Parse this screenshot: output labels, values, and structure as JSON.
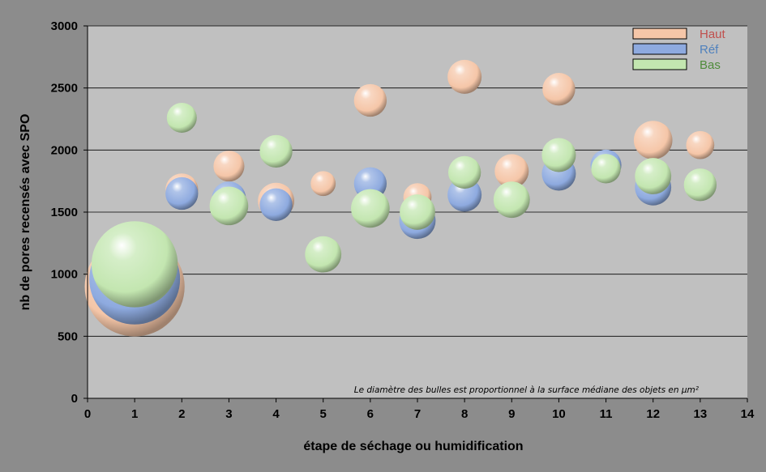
{
  "chart_data": {
    "type": "bubble",
    "xlabel": "étape de séchage ou humidification",
    "ylabel": "nb de pores recensés avec SPO",
    "xlim": [
      0,
      14
    ],
    "ylim": [
      0,
      3000
    ],
    "x_ticks": [
      0,
      1,
      2,
      3,
      4,
      5,
      6,
      7,
      8,
      9,
      10,
      11,
      12,
      13,
      14
    ],
    "y_ticks": [
      0,
      500,
      1000,
      1500,
      2000,
      2500,
      3000
    ],
    "grid": "horizontal",
    "legend_position": "top-right",
    "annotation": "Le diamètre des bulles est proportionnel à la surface médiane des objets en µm²",
    "series": [
      {
        "name": "Haut",
        "color": "#f5c6a8",
        "label_color": "#c0504d",
        "points": [
          {
            "x": 1,
            "y": 900,
            "size": 2.2
          },
          {
            "x": 2,
            "y": 1680,
            "size": 0.72
          },
          {
            "x": 3,
            "y": 1870,
            "size": 0.68
          },
          {
            "x": 4,
            "y": 1590,
            "size": 0.8
          },
          {
            "x": 5,
            "y": 1730,
            "size": 0.55
          },
          {
            "x": 6,
            "y": 2400,
            "size": 0.72
          },
          {
            "x": 7,
            "y": 1620,
            "size": 0.62
          },
          {
            "x": 8,
            "y": 2590,
            "size": 0.75
          },
          {
            "x": 9,
            "y": 1830,
            "size": 0.75
          },
          {
            "x": 10,
            "y": 2490,
            "size": 0.72
          },
          {
            "x": 12,
            "y": 2080,
            "size": 0.85
          },
          {
            "x": 13,
            "y": 2040,
            "size": 0.62
          }
        ]
      },
      {
        "name": "Réf",
        "color": "#8eaadf",
        "label_color": "#4f81bd",
        "points": [
          {
            "x": 1,
            "y": 960,
            "size": 2.0
          },
          {
            "x": 2,
            "y": 1650,
            "size": 0.72
          },
          {
            "x": 3,
            "y": 1610,
            "size": 0.75
          },
          {
            "x": 4,
            "y": 1560,
            "size": 0.72
          },
          {
            "x": 6,
            "y": 1730,
            "size": 0.72
          },
          {
            "x": 7,
            "y": 1430,
            "size": 0.8
          },
          {
            "x": 8,
            "y": 1640,
            "size": 0.75
          },
          {
            "x": 10,
            "y": 1810,
            "size": 0.75
          },
          {
            "x": 11,
            "y": 1880,
            "size": 0.68
          },
          {
            "x": 12,
            "y": 1700,
            "size": 0.8
          }
        ]
      },
      {
        "name": "Bas",
        "color": "#c3e6b0",
        "label_color": "#4e8b3a",
        "points": [
          {
            "x": 1,
            "y": 1080,
            "size": 1.9
          },
          {
            "x": 2,
            "y": 2260,
            "size": 0.66
          },
          {
            "x": 3,
            "y": 1550,
            "size": 0.85
          },
          {
            "x": 4,
            "y": 1990,
            "size": 0.72
          },
          {
            "x": 5,
            "y": 1160,
            "size": 0.8
          },
          {
            "x": 6,
            "y": 1530,
            "size": 0.85
          },
          {
            "x": 7,
            "y": 1500,
            "size": 0.78
          },
          {
            "x": 8,
            "y": 1820,
            "size": 0.72
          },
          {
            "x": 9,
            "y": 1600,
            "size": 0.8
          },
          {
            "x": 10,
            "y": 1960,
            "size": 0.75
          },
          {
            "x": 11,
            "y": 1850,
            "size": 0.65
          },
          {
            "x": 12,
            "y": 1790,
            "size": 0.8
          },
          {
            "x": 13,
            "y": 1720,
            "size": 0.72
          }
        ]
      }
    ]
  }
}
